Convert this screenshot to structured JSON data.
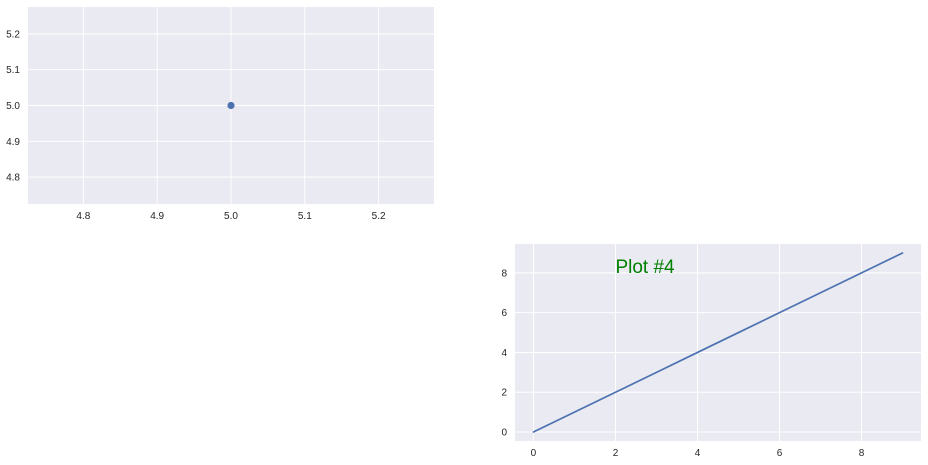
{
  "chart_data": [
    {
      "type": "scatter",
      "title": "",
      "xlabel": "",
      "ylabel": "",
      "xlim": [
        4.725,
        5.275
      ],
      "ylim": [
        4.725,
        5.275
      ],
      "xticks": [
        4.8,
        4.9,
        5.0,
        5.1,
        5.2
      ],
      "yticks": [
        4.8,
        4.9,
        5.0,
        5.1,
        5.2
      ],
      "xtick_labels": [
        "4.8",
        "4.9",
        "5.0",
        "5.1",
        "5.2"
      ],
      "ytick_labels": [
        "4.8",
        "4.9",
        "5.0",
        "5.1",
        "5.2"
      ],
      "grid": true,
      "series": [
        {
          "x": [
            5
          ],
          "y": [
            5
          ],
          "color": "#4c72b0"
        }
      ]
    },
    {
      "type": "line",
      "title": "",
      "xlabel": "",
      "ylabel": "",
      "xlim": [
        -0.45,
        9.45
      ],
      "ylim": [
        -0.45,
        9.45
      ],
      "xticks": [
        0,
        2,
        4,
        6,
        8
      ],
      "yticks": [
        0,
        2,
        4,
        6,
        8
      ],
      "xtick_labels": [
        "0",
        "2",
        "4",
        "6",
        "8"
      ],
      "ytick_labels": [
        "0",
        "2",
        "4",
        "6",
        "8"
      ],
      "grid": true,
      "annotation": {
        "text": "Plot #4",
        "x": 2,
        "y": 8,
        "color": "#008000"
      },
      "series": [
        {
          "x": [
            0,
            1,
            2,
            3,
            4,
            5,
            6,
            7,
            8,
            9
          ],
          "y": [
            0,
            1,
            2,
            3,
            4,
            5,
            6,
            7,
            8,
            9
          ],
          "color": "#4c72b0"
        }
      ]
    }
  ],
  "style": {
    "axes_bg": "#eaeaf2",
    "grid_color": "#ffffff",
    "label_color": "#262626"
  }
}
